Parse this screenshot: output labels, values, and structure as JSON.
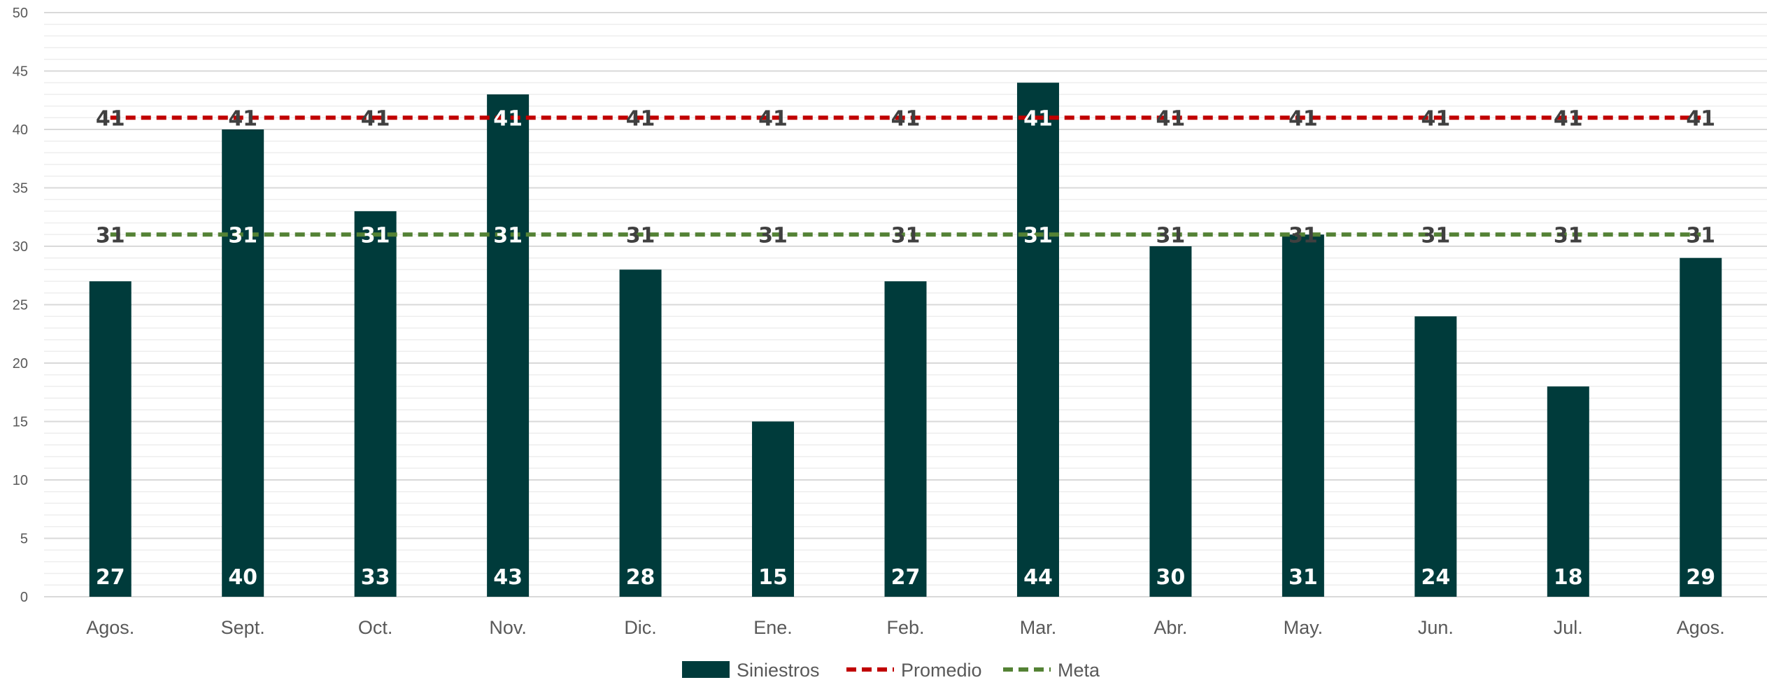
{
  "chart_data": {
    "type": "bar",
    "categories": [
      "Agos.",
      "Sept.",
      "Oct.",
      "Nov.",
      "Dic.",
      "Ene.",
      "Feb.",
      "Mar.",
      "Abr.",
      "May.",
      "Jun.",
      "Jul.",
      "Agos."
    ],
    "series": [
      {
        "name": "Siniestros",
        "type": "bar",
        "color": "#003b3b",
        "values": [
          27,
          40,
          33,
          43,
          28,
          15,
          27,
          44,
          30,
          31,
          24,
          18,
          29
        ]
      },
      {
        "name": "Promedio",
        "type": "line",
        "style": "dashed",
        "color": "#c00000",
        "values": [
          41,
          41,
          41,
          41,
          41,
          41,
          41,
          41,
          41,
          41,
          41,
          41,
          41
        ]
      },
      {
        "name": "Meta",
        "type": "line",
        "style": "dashed",
        "color": "#548235",
        "values": [
          31,
          31,
          31,
          31,
          31,
          31,
          31,
          31,
          31,
          31,
          31,
          31,
          31
        ]
      }
    ],
    "title": "",
    "xlabel": "",
    "ylabel": "",
    "ylim": [
      0,
      50
    ],
    "ytick_step": 5,
    "ytick_labels": [
      "0",
      "5",
      "10",
      "15",
      "20",
      "25",
      "30",
      "35",
      "40",
      "45",
      "50"
    ],
    "grid": true,
    "legend_position": "bottom",
    "legend_labels": [
      "Siniestros",
      "Promedio",
      "Meta"
    ]
  }
}
